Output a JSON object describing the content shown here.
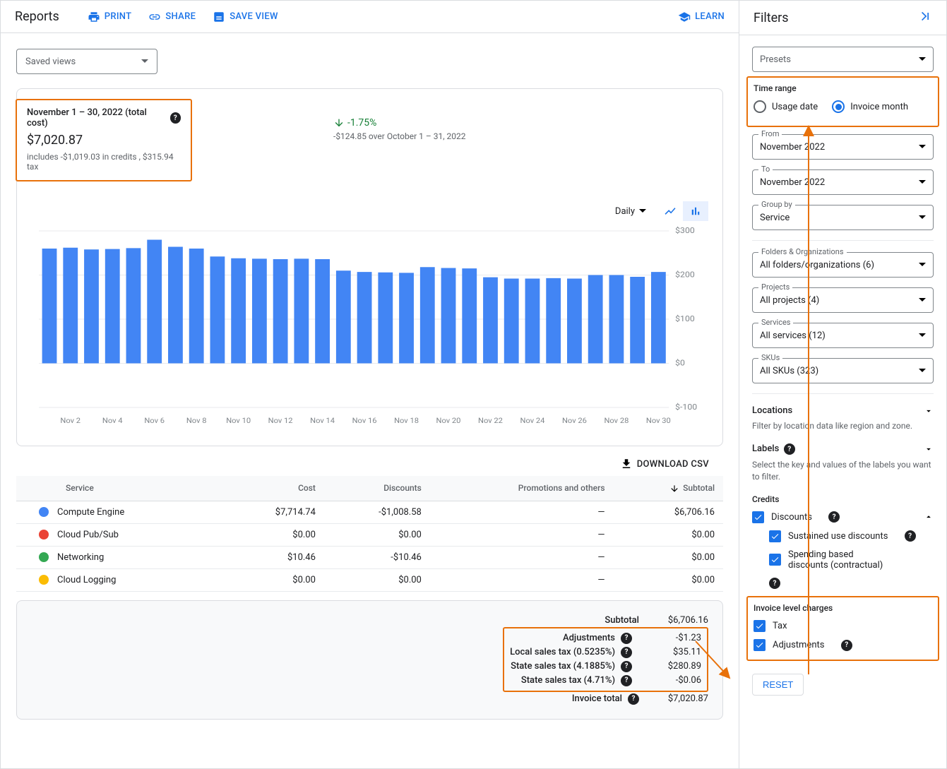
{
  "header": {
    "title": "Reports",
    "print": "Print",
    "share": "Share",
    "saveView": "Save view",
    "learn": "Learn"
  },
  "savedViews": {
    "placeholder": "Saved views"
  },
  "summary": {
    "dateRange": "November 1 – 30, 2022 (total cost)",
    "cost": "$7,020.87",
    "sub": "includes -$1,019.03 in credits , $315.94 tax",
    "deltaPct": "-1.75%",
    "deltaSub": "-$124.85 over October 1 – 31, 2022"
  },
  "chart": {
    "granularity": "Daily",
    "yMin": -100,
    "yMax": 300,
    "yTicks": [
      300,
      200,
      100,
      0,
      -100
    ],
    "yTickLabels": [
      "$300",
      "$200",
      "$100",
      "$0",
      "$-100"
    ],
    "xLabels": [
      "Nov 2",
      "Nov 4",
      "Nov 6",
      "Nov 8",
      "Nov 10",
      "Nov 12",
      "Nov 14",
      "Nov 16",
      "Nov 18",
      "Nov 20",
      "Nov 22",
      "Nov 24",
      "Nov 26",
      "Nov 28",
      "Nov 30"
    ],
    "bars": [
      260,
      262,
      258,
      259,
      261,
      280,
      264,
      260,
      242,
      238,
      237,
      236,
      237,
      236,
      210,
      207,
      206,
      205,
      218,
      216,
      215,
      195,
      192,
      192,
      193,
      192,
      200,
      200,
      196,
      207
    ],
    "barColor": "#4285f4",
    "gridColor": "#e8eaed",
    "axisTextColor": "#80868b"
  },
  "download": "Download CSV",
  "table": {
    "headers": {
      "service": "Service",
      "cost": "Cost",
      "discounts": "Discounts",
      "promotions": "Promotions and others",
      "subtotal": "Subtotal"
    },
    "rows": [
      {
        "color": "#4285f4",
        "service": "Compute Engine",
        "cost": "$7,714.74",
        "discounts": "-$1,008.58",
        "promotions": "—",
        "subtotal": "$6,706.16"
      },
      {
        "color": "#ea4335",
        "service": "Cloud Pub/Sub",
        "cost": "$0.00",
        "discounts": "$0.00",
        "promotions": "—",
        "subtotal": "$0.00"
      },
      {
        "color": "#34a853",
        "service": "Networking",
        "cost": "$10.46",
        "discounts": "-$10.46",
        "promotions": "—",
        "subtotal": "$0.00"
      },
      {
        "color": "#fbbc04",
        "service": "Cloud Logging",
        "cost": "$0.00",
        "discounts": "$0.00",
        "promotions": "—",
        "subtotal": "$0.00"
      }
    ]
  },
  "totals": {
    "subtotal": {
      "label": "Subtotal",
      "value": "$6,706.16"
    },
    "rows": [
      {
        "label": "Adjustments",
        "value": "-$1.23",
        "help": true
      },
      {
        "label": "Local sales tax (0.5235%)",
        "value": "$35.11",
        "help": true
      },
      {
        "label": "State sales tax (4.1885%)",
        "value": "$280.89",
        "help": true
      },
      {
        "label": "State sales tax (4.71%)",
        "value": "-$0.06",
        "help": true
      }
    ],
    "invoiceTotal": {
      "label": "Invoice total",
      "value": "$7,020.87"
    }
  },
  "filters": {
    "title": "Filters",
    "presets": "Presets",
    "timeRange": {
      "title": "Time range",
      "usageDate": "Usage date",
      "invoiceMonth": "Invoice month"
    },
    "from": {
      "label": "From",
      "value": "November 2022"
    },
    "to": {
      "label": "To",
      "value": "November 2022"
    },
    "groupBy": {
      "label": "Group by",
      "value": "Service"
    },
    "folders": {
      "label": "Folders & Organizations",
      "value": "All folders/organizations (6)"
    },
    "projects": {
      "label": "Projects",
      "value": "All projects (4)"
    },
    "services": {
      "label": "Services",
      "value": "All services (12)"
    },
    "skus": {
      "label": "SKUs",
      "value": "All SKUs (323)"
    },
    "locations": {
      "title": "Locations",
      "hint": "Filter by location data like region and zone."
    },
    "labels": {
      "title": "Labels",
      "hint": "Select the key and values of the labels you want to filter."
    },
    "credits": {
      "title": "Credits",
      "discounts": "Discounts",
      "sustained": "Sustained use discounts",
      "spending": "Spending based discounts (contractual)"
    },
    "invoiceCharges": {
      "title": "Invoice level charges",
      "tax": "Tax",
      "adjustments": "Adjustments"
    },
    "reset": "Reset"
  },
  "annotationColor": "#e8710a"
}
